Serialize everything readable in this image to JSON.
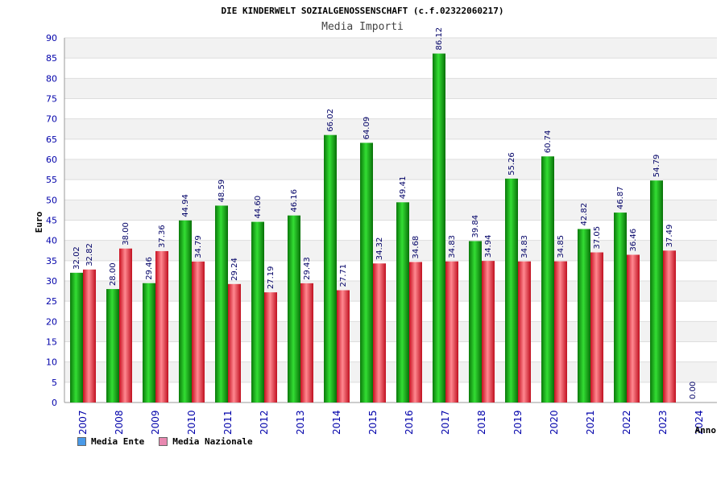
{
  "chart_data": {
    "type": "bar",
    "title": "DIE KINDERWELT SOZIALGENOSSENSCHAFT (c.f.02322060217)",
    "subtitle": "Media Importi",
    "xlabel": "Anno",
    "ylabel": "Euro",
    "ylim": [
      0,
      90
    ],
    "ytick_step": 5,
    "grid": true,
    "legend": "bottom-left",
    "categories": [
      "2007",
      "2008",
      "2009",
      "2010",
      "2011",
      "2012",
      "2013",
      "2014",
      "2015",
      "2016",
      "2017",
      "2018",
      "2019",
      "2020",
      "2021",
      "2022",
      "2023",
      "2024"
    ],
    "series": [
      {
        "name": "Media Ente",
        "color": "#4a9ae8",
        "bar_color": "#12b012",
        "values": [
          32.02,
          28.0,
          29.46,
          44.94,
          48.59,
          44.6,
          46.16,
          66.02,
          64.09,
          49.41,
          86.12,
          39.84,
          55.26,
          60.74,
          42.82,
          46.87,
          54.79,
          0.0
        ],
        "labels": [
          "32.02",
          "28.00",
          "29.46",
          "44.94",
          "48.59",
          "44.60",
          "46.16",
          "66.02",
          "64.09",
          "49.41",
          "86.12",
          "39.84",
          "55.26",
          "60.74",
          "42.82",
          "46.87",
          "54.79",
          "0.00"
        ]
      },
      {
        "name": "Media Nazionale",
        "color": "#e888b0",
        "bar_color": "#e83040",
        "values": [
          32.82,
          38.0,
          37.36,
          34.79,
          29.24,
          27.19,
          29.43,
          27.71,
          34.32,
          34.68,
          34.83,
          34.94,
          34.83,
          34.85,
          37.05,
          36.46,
          37.49,
          null
        ],
        "labels": [
          "32.82",
          "38.00",
          "37.36",
          "34.79",
          "29.24",
          "27.19",
          "29.43",
          "27.71",
          "34.32",
          "34.68",
          "34.83",
          "34.94",
          "34.83",
          "34.85",
          "37.05",
          "36.46",
          "37.49",
          ""
        ]
      }
    ]
  }
}
